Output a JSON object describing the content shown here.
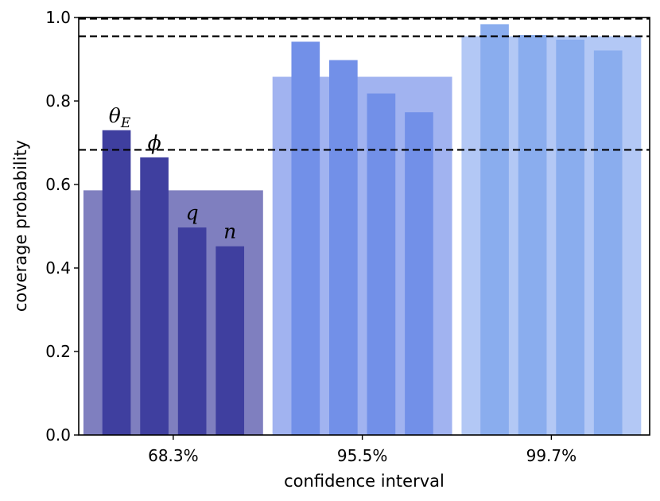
{
  "chart_data": {
    "type": "bar",
    "xlabel": "confidence interval",
    "ylabel": "coverage probability",
    "ylim": [
      0,
      1.0
    ],
    "yticks": [
      "0.0",
      "0.2",
      "0.4",
      "0.6",
      "0.8",
      "1.0"
    ],
    "categories": [
      "68.3%",
      "95.5%",
      "99.7%"
    ],
    "parameters": [
      {
        "label": "θ",
        "sub": "E"
      },
      {
        "label": "ϕ",
        "sub": ""
      },
      {
        "label": "q",
        "sub": ""
      },
      {
        "label": "n",
        "sub": ""
      }
    ],
    "overall_values": [
      0.586,
      0.858,
      0.955
    ],
    "series": [
      {
        "values": [
          0.73,
          0.942,
          0.984
        ]
      },
      {
        "values": [
          0.665,
          0.898,
          0.958
        ]
      },
      {
        "values": [
          0.497,
          0.818,
          0.947
        ]
      },
      {
        "values": [
          0.452,
          0.773,
          0.921
        ]
      }
    ],
    "reference_lines": [
      0.683,
      0.955,
      0.997
    ],
    "colors": {
      "overall": [
        "#7f7fbf",
        "#a1b3f0",
        "#b3c8f5"
      ],
      "bars": [
        "#3f3f9f",
        "#7290e8",
        "#8aadee"
      ]
    }
  }
}
